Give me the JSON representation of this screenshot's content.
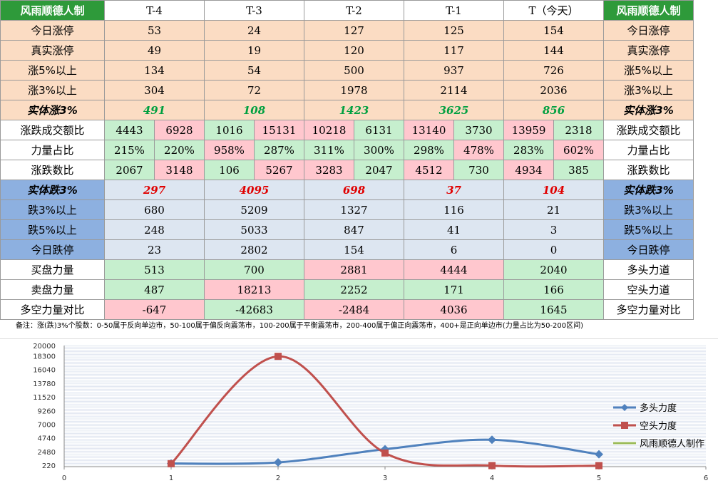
{
  "table": {
    "brand_label": "风雨顺德人制",
    "headers": [
      "T-4",
      "T-3",
      "T-2",
      "T-1",
      "T（今天）"
    ],
    "rows": [
      {
        "style": "peach",
        "label": "今日涨停",
        "right": "今日涨停",
        "values": [
          "53",
          "24",
          "127",
          "125",
          "154"
        ]
      },
      {
        "style": "peach",
        "label": "真实涨停",
        "right": "真实涨停",
        "values": [
          "49",
          "19",
          "120",
          "117",
          "144"
        ]
      },
      {
        "style": "peach",
        "label": "涨5%以上",
        "right": "涨5%以上",
        "values": [
          "134",
          "54",
          "500",
          "937",
          "726"
        ]
      },
      {
        "style": "peach",
        "label": "涨3%以上",
        "right": "涨3%以上",
        "values": [
          "304",
          "72",
          "1978",
          "2114",
          "2036"
        ]
      },
      {
        "style": "peach-ital",
        "label": "实体涨3%",
        "right": "实体涨3%",
        "values": [
          "491",
          "108",
          "1423",
          "3625",
          "856"
        ]
      },
      {
        "style": "split",
        "label": "涨跌成交额比",
        "right": "涨跌成交额比",
        "pairs": [
          [
            "4443",
            "6928"
          ],
          [
            "1016",
            "15131"
          ],
          [
            "10218",
            "6131"
          ],
          [
            "13140",
            "3730"
          ],
          [
            "13959",
            "2318"
          ]
        ],
        "colors": [
          [
            "g",
            "r"
          ],
          [
            "g",
            "r"
          ],
          [
            "r",
            "g"
          ],
          [
            "r",
            "g"
          ],
          [
            "r",
            "g"
          ]
        ]
      },
      {
        "style": "split",
        "label": "力量占比",
        "right": "力量占比",
        "pairs": [
          [
            "215%",
            "220%"
          ],
          [
            "958%",
            "287%"
          ],
          [
            "311%",
            "300%"
          ],
          [
            "298%",
            "478%"
          ],
          [
            "283%",
            "602%"
          ]
        ],
        "colors": [
          [
            "g",
            "g"
          ],
          [
            "r",
            "g"
          ],
          [
            "g",
            "g"
          ],
          [
            "g",
            "r"
          ],
          [
            "g",
            "r"
          ]
        ]
      },
      {
        "style": "split",
        "label": "涨跌数比",
        "right": "涨跌数比",
        "pairs": [
          [
            "2067",
            "3148"
          ],
          [
            "106",
            "5267"
          ],
          [
            "3283",
            "2047"
          ],
          [
            "4512",
            "730"
          ],
          [
            "4934",
            "385"
          ]
        ],
        "colors": [
          [
            "g",
            "r"
          ],
          [
            "g",
            "r"
          ],
          [
            "r",
            "g"
          ],
          [
            "r",
            "g"
          ],
          [
            "r",
            "g"
          ]
        ]
      },
      {
        "style": "blue-ital",
        "label": "实体跌3%",
        "right": "实体跌3%",
        "values": [
          "297",
          "4095",
          "698",
          "37",
          "104"
        ]
      },
      {
        "style": "blue",
        "label": "跌3%以上",
        "right": "跌3%以上",
        "values": [
          "680",
          "5209",
          "1327",
          "116",
          "21"
        ]
      },
      {
        "style": "blue",
        "label": "跌5%以上",
        "right": "跌5%以上",
        "values": [
          "248",
          "5033",
          "847",
          "41",
          "3"
        ]
      },
      {
        "style": "blue",
        "label": "今日跌停",
        "right": "今日跌停",
        "values": [
          "23",
          "2802",
          "154",
          "6",
          "0"
        ]
      },
      {
        "style": "force",
        "label": "买盘力量",
        "right": "多头力道",
        "values": [
          "513",
          "700",
          "2881",
          "4444",
          "2040"
        ],
        "colors": [
          "g",
          "g",
          "r",
          "r",
          "g"
        ]
      },
      {
        "style": "force",
        "label": "卖盘力量",
        "right": "空头力道",
        "values": [
          "487",
          "18213",
          "2252",
          "171",
          "166"
        ],
        "colors": [
          "g",
          "r",
          "g",
          "g",
          "g"
        ]
      },
      {
        "style": "force",
        "label": "多空力量对比",
        "right": "多空力量对比",
        "values": [
          "-647",
          "-42683",
          "-2484",
          "4036",
          "1645"
        ],
        "colors": [
          "r",
          "g",
          "r",
          "r",
          "g"
        ]
      }
    ]
  },
  "note": "备注：涨(跌)3%个股数：0-50属于反向单边市，50-100属于偏反向震荡市，100-200属于平衡震荡市，200-400属于偏正向震荡市，400+是正向单边市(力量占比为50-200区间)",
  "colors": {
    "brand_green": "#2e9a3a",
    "peach": "#fbdcc3",
    "blue": "#8db0e0",
    "light_blue": "#dde6f1",
    "green_cell": "#c6efce",
    "red_cell": "#ffc7ce",
    "series_blue": "#4f81bd",
    "series_red": "#c0504d",
    "series_green": "#9bbb59"
  },
  "chart_data": {
    "type": "line",
    "xlim": [
      0,
      6
    ],
    "x_ticks": [
      "0",
      "1",
      "2",
      "3",
      "4",
      "5",
      "6"
    ],
    "ylim": [
      0,
      20000
    ],
    "y_ticks": [
      "220",
      "2480",
      "4740",
      "7000",
      "9260",
      "11520",
      "13780",
      "16040",
      "18300",
      "20000"
    ],
    "legend_position": "right",
    "series": [
      {
        "name": "多头力度",
        "color": "#4f81bd",
        "marker": "diamond",
        "x": [
          1,
          2,
          3,
          4,
          5
        ],
        "y": [
          513,
          700,
          2881,
          4444,
          2040
        ]
      },
      {
        "name": "空头力度",
        "color": "#c0504d",
        "marker": "square",
        "x": [
          1,
          2,
          3,
          4,
          5
        ],
        "y": [
          487,
          18213,
          2252,
          171,
          166
        ]
      },
      {
        "name": "风雨顺德人制作",
        "color": "#9bbb59",
        "marker": "none",
        "x": [],
        "y": []
      }
    ]
  }
}
